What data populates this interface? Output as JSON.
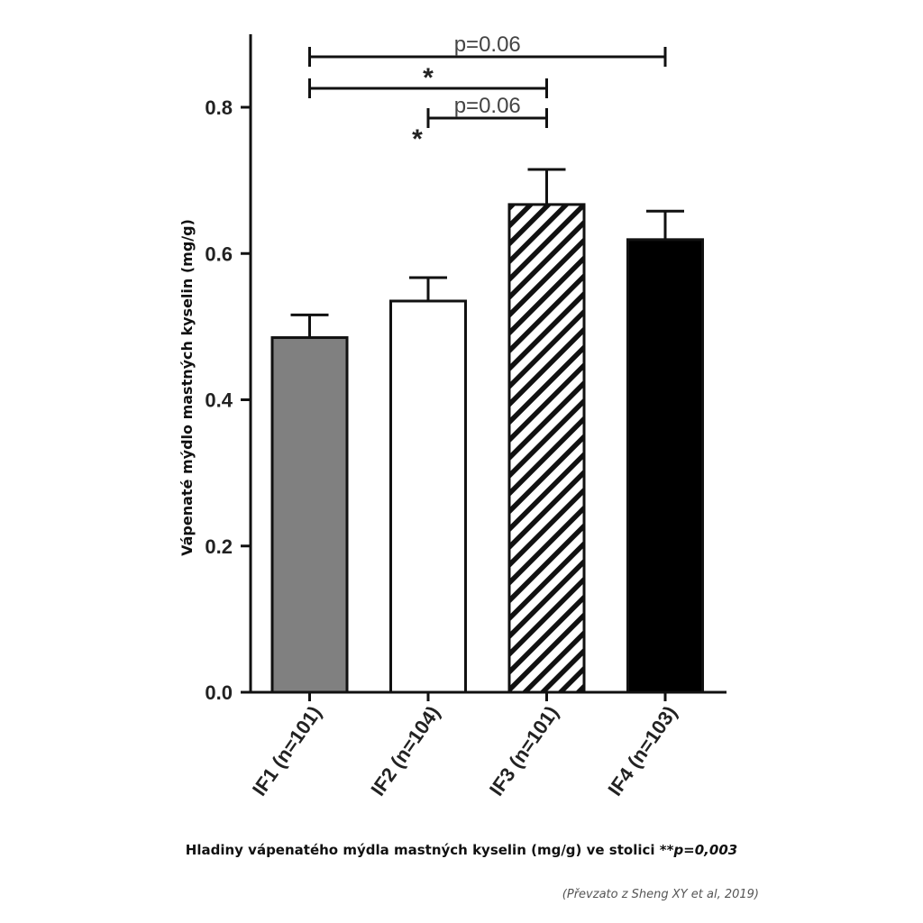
{
  "chart_data": {
    "type": "bar",
    "title": "",
    "ylabel": "Vápenaté mýdlo mastných kyselin (mg/g)",
    "xlabel": "",
    "ylim": [
      0,
      0.9
    ],
    "yticks": [
      0.0,
      0.2,
      0.4,
      0.6,
      0.8
    ],
    "ytick_labels": [
      "0.0",
      "0.2",
      "0.4",
      "0.6",
      "0.8"
    ],
    "categories": [
      "IF1 (n=101)",
      "IF2 (n=104)",
      "IF3 (n=101)",
      "IF4 (n=103)"
    ],
    "values": [
      0.485,
      0.535,
      0.667,
      0.619
    ],
    "errors": [
      0.031,
      0.032,
      0.048,
      0.039
    ],
    "fills": [
      "gray",
      "white",
      "hatched",
      "black"
    ],
    "colors": {
      "gray": "#808080",
      "white": "#ffffff",
      "black": "#000000",
      "axis": "#111111"
    },
    "grid": false,
    "legend": "none",
    "annotations": [
      {
        "from": "IF1 (n=101)",
        "to": "IF4 (n=103)",
        "label": "p=0.06"
      },
      {
        "from": "IF1 (n=101)",
        "to": "IF3 (n=101)",
        "label": "*"
      },
      {
        "from": "IF2 (n=104)",
        "to": "IF3 (n=101)",
        "label": "p=0.06",
        "marker": "*"
      }
    ]
  },
  "caption": {
    "text": "Hladiny vápenatého mýdla mastných kyselin (mg/g) ve stolici **",
    "pvalue": "p=0,003"
  },
  "source": "(Převzato z Sheng XY et al, 2019)"
}
